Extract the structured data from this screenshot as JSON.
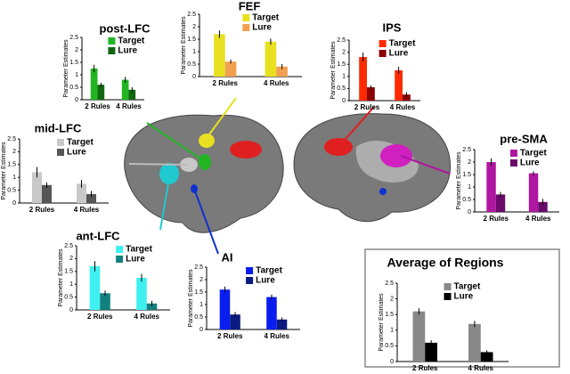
{
  "chart_data": [
    {
      "type": "bar",
      "title": "post-LFC",
      "y_label": "Parameter Estimates",
      "categories": [
        "2 Rules",
        "4 Rules"
      ],
      "ylim": [
        0,
        2.5
      ],
      "yticks": [
        0,
        0.5,
        1,
        1.5,
        2,
        2.5
      ],
      "series": [
        {
          "name": "Target",
          "color": "#22b522",
          "values": [
            1.25,
            0.8
          ],
          "errors": [
            0.15,
            0.12
          ]
        },
        {
          "name": "Lure",
          "color": "#116611",
          "values": [
            0.6,
            0.4
          ],
          "errors": [
            0.08,
            0.1
          ]
        }
      ]
    },
    {
      "type": "bar",
      "title": "FEF",
      "y_label": "Parameter Estimates",
      "categories": [
        "2 Rules",
        "4 Rules"
      ],
      "ylim": [
        0,
        2.5
      ],
      "yticks": [
        0,
        0.5,
        1,
        1.5,
        2,
        2.5
      ],
      "series": [
        {
          "name": "Target",
          "color": "#e8e020",
          "values": [
            1.7,
            1.4
          ],
          "errors": [
            0.15,
            0.12
          ]
        },
        {
          "name": "Lure",
          "color": "#f0a050",
          "values": [
            0.6,
            0.4
          ],
          "errors": [
            0.08,
            0.1
          ]
        }
      ]
    },
    {
      "type": "bar",
      "title": "IPS",
      "y_label": "Parameter Estimates",
      "categories": [
        "2 Rules",
        "4 Rules"
      ],
      "ylim": [
        0,
        2.5
      ],
      "yticks": [
        0,
        0.5,
        1,
        1.5,
        2,
        2.5
      ],
      "series": [
        {
          "name": "Target",
          "color": "#ff2a00",
          "values": [
            1.8,
            1.25
          ],
          "errors": [
            0.18,
            0.15
          ]
        },
        {
          "name": "Lure",
          "color": "#8b0000",
          "values": [
            0.55,
            0.25
          ],
          "errors": [
            0.08,
            0.1
          ]
        }
      ]
    },
    {
      "type": "bar",
      "title": "mid-LFC",
      "y_label": "Parameter Estimates",
      "categories": [
        "2 Rules",
        "4 Rules"
      ],
      "ylim": [
        0,
        2.5
      ],
      "yticks": [
        0,
        0.5,
        1,
        1.5,
        2,
        2.5
      ],
      "series": [
        {
          "name": "Target",
          "color": "#c8c8c8",
          "values": [
            1.2,
            0.75
          ],
          "errors": [
            0.2,
            0.15
          ]
        },
        {
          "name": "Lure",
          "color": "#555555",
          "values": [
            0.7,
            0.35
          ],
          "errors": [
            0.1,
            0.12
          ]
        }
      ]
    },
    {
      "type": "bar",
      "title": "pre-SMA",
      "y_label": "Parameter Estimates",
      "categories": [
        "2 Rules",
        "4 Rules"
      ],
      "ylim": [
        0,
        2.5
      ],
      "yticks": [
        0,
        0.5,
        1,
        1.5,
        2,
        2.5
      ],
      "series": [
        {
          "name": "Target",
          "color": "#b0169f",
          "values": [
            2.0,
            1.55
          ],
          "errors": [
            0.15,
            0.08
          ]
        },
        {
          "name": "Lure",
          "color": "#6a0a6a",
          "values": [
            0.7,
            0.4
          ],
          "errors": [
            0.1,
            0.12
          ]
        }
      ]
    },
    {
      "type": "bar",
      "title": "ant-LFC",
      "y_label": "Parameter Estimates",
      "categories": [
        "2 Rules",
        "4 Rules"
      ],
      "ylim": [
        0,
        2.5
      ],
      "yticks": [
        0,
        0.5,
        1,
        1.5,
        2,
        2.5
      ],
      "series": [
        {
          "name": "Target",
          "color": "#40f0f0",
          "values": [
            1.7,
            1.25
          ],
          "errors": [
            0.2,
            0.15
          ]
        },
        {
          "name": "Lure",
          "color": "#138080",
          "values": [
            0.65,
            0.25
          ],
          "errors": [
            0.1,
            0.1
          ]
        }
      ]
    },
    {
      "type": "bar",
      "title": "AI",
      "y_label": "Parameter Estimates",
      "categories": [
        "2 Rules",
        "4 Rules"
      ],
      "ylim": [
        0,
        2.5
      ],
      "yticks": [
        0,
        0.5,
        1,
        1.5,
        2,
        2.5
      ],
      "series": [
        {
          "name": "Target",
          "color": "#0a1ef0",
          "values": [
            1.6,
            1.3
          ],
          "errors": [
            0.12,
            0.1
          ]
        },
        {
          "name": "Lure",
          "color": "#0a1a80",
          "values": [
            0.6,
            0.4
          ],
          "errors": [
            0.1,
            0.08
          ]
        }
      ]
    },
    {
      "type": "bar",
      "title": "Average of Regions",
      "y_label": "Parameter Estimates",
      "categories": [
        "2 Rules",
        "4 Rules"
      ],
      "ylim": [
        0,
        2.5
      ],
      "yticks": [
        0,
        0.5,
        1,
        1.5,
        2,
        2.5
      ],
      "series": [
        {
          "name": "Target",
          "color": "#888888",
          "values": [
            1.6,
            1.2
          ],
          "errors": [
            0.1,
            0.1
          ]
        },
        {
          "name": "Lure",
          "color": "#000000",
          "values": [
            0.6,
            0.3
          ],
          "errors": [
            0.08,
            0.06
          ]
        }
      ]
    }
  ]
}
